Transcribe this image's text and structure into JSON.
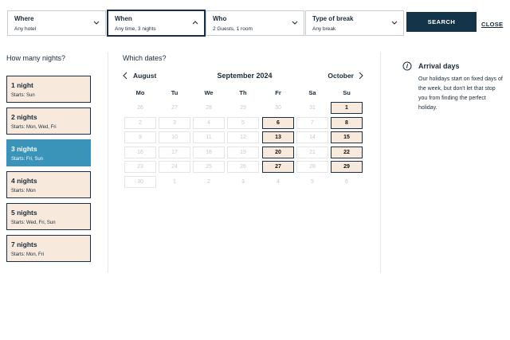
{
  "search_bar": {
    "fields": [
      {
        "label": "Where",
        "value": "Any hotel"
      },
      {
        "label": "When",
        "value": "Any time, 3 nights"
      },
      {
        "label": "Who",
        "value": "2 Guests, 1 room"
      },
      {
        "label": "Type of break",
        "value": "Any break"
      }
    ],
    "selected": 1,
    "button": "SEARCH",
    "close": "CLOSE"
  },
  "nights": {
    "title": "How many nights?",
    "selected": 2,
    "options": [
      {
        "label": "1 night",
        "starts": "Starts: Sun"
      },
      {
        "label": "2 nights",
        "starts": "Starts: Mon, Wed, Fri"
      },
      {
        "label": "3 nights",
        "starts": "Starts: Fri, Sun"
      },
      {
        "label": "4 nights",
        "starts": "Starts: Mon"
      },
      {
        "label": "5 nights",
        "starts": "Starts: Wed, Fri, Sun"
      },
      {
        "label": "7 nights",
        "starts": "Starts: Mon, Fri"
      }
    ]
  },
  "calendar": {
    "title": "Which dates?",
    "prev": "August",
    "month": "September 2024",
    "next": "October",
    "weekdays": [
      "Mo",
      "Tu",
      "We",
      "Th",
      "Fr",
      "Sa",
      "Su"
    ],
    "weeks": [
      [
        {
          "d": 26,
          "s": "out"
        },
        {
          "d": 27,
          "s": "out"
        },
        {
          "d": 28,
          "s": "out"
        },
        {
          "d": 29,
          "s": "out"
        },
        {
          "d": 30,
          "s": "out"
        },
        {
          "d": 31,
          "s": "out"
        },
        {
          "d": 1,
          "s": "av"
        }
      ],
      [
        {
          "d": 2,
          "s": "un"
        },
        {
          "d": 3,
          "s": "un"
        },
        {
          "d": 4,
          "s": "un"
        },
        {
          "d": 5,
          "s": "un"
        },
        {
          "d": 6,
          "s": "av"
        },
        {
          "d": 7,
          "s": "un"
        },
        {
          "d": 8,
          "s": "av"
        }
      ],
      [
        {
          "d": 9,
          "s": "un"
        },
        {
          "d": 10,
          "s": "un"
        },
        {
          "d": 11,
          "s": "un"
        },
        {
          "d": 12,
          "s": "un"
        },
        {
          "d": 13,
          "s": "av"
        },
        {
          "d": 14,
          "s": "un"
        },
        {
          "d": 15,
          "s": "av"
        }
      ],
      [
        {
          "d": 16,
          "s": "un"
        },
        {
          "d": 17,
          "s": "un"
        },
        {
          "d": 18,
          "s": "un"
        },
        {
          "d": 19,
          "s": "un"
        },
        {
          "d": 20,
          "s": "av"
        },
        {
          "d": 21,
          "s": "un"
        },
        {
          "d": 22,
          "s": "av"
        }
      ],
      [
        {
          "d": 23,
          "s": "un"
        },
        {
          "d": 24,
          "s": "un"
        },
        {
          "d": 25,
          "s": "un"
        },
        {
          "d": 26,
          "s": "un"
        },
        {
          "d": 27,
          "s": "av"
        },
        {
          "d": 28,
          "s": "un"
        },
        {
          "d": 29,
          "s": "av"
        }
      ],
      [
        {
          "d": 30,
          "s": "un"
        },
        {
          "d": 1,
          "s": "out"
        },
        {
          "d": 2,
          "s": "out"
        },
        {
          "d": 3,
          "s": "out"
        },
        {
          "d": 4,
          "s": "out"
        },
        {
          "d": 5,
          "s": "out"
        },
        {
          "d": 6,
          "s": "out"
        }
      ]
    ]
  },
  "info": {
    "title": "Arrival days",
    "text": "Our holidays start on fixed days of the week, but don't let that stop you from finding the perfect holiday."
  }
}
